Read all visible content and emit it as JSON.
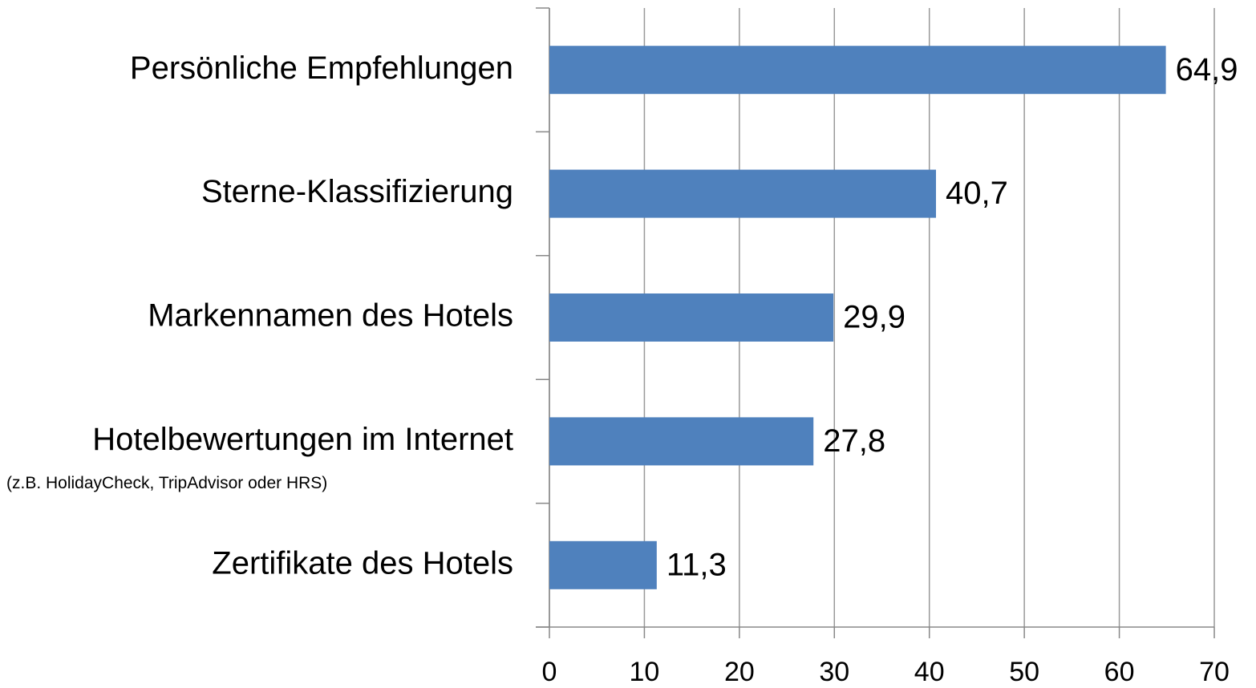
{
  "chart_data": {
    "type": "bar",
    "orientation": "horizontal",
    "categories": [
      "Persönliche Empfehlungen",
      "Sterne-Klassifizierung",
      "Markennamen des Hotels",
      "Hotelbewertungen im Internet",
      "Zertifikate des Hotels"
    ],
    "category_note": {
      "category": 3,
      "text": "(z.B. HolidayCheck, TripAdvisor oder HRS)"
    },
    "values": [
      64.9,
      40.7,
      29.9,
      27.8,
      11.3
    ],
    "value_labels": [
      "64,9",
      "40,7",
      "29,9",
      "27,8",
      "11,3"
    ],
    "color": "#4f81bd",
    "xlim": [
      0,
      70
    ],
    "xticks": [
      0,
      10,
      20,
      30,
      40,
      50,
      60,
      70
    ],
    "grid": true
  }
}
